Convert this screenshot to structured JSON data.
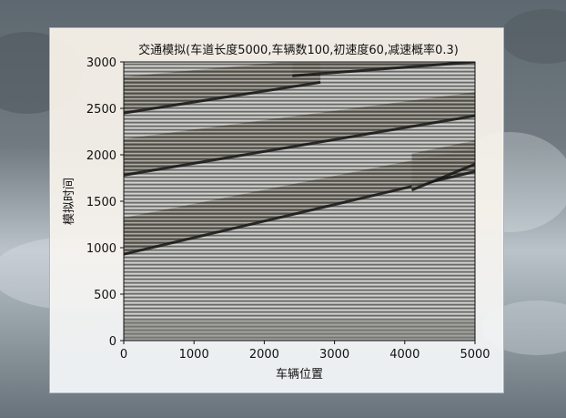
{
  "chart_data": {
    "type": "heatmap",
    "title": "交通模拟(车道长度5000,车辆数100,初速度60,减速概率0.3)",
    "xlabel": "车辆位置",
    "ylabel": "模拟时间",
    "xlim": [
      0,
      5000
    ],
    "ylim": [
      0,
      3000
    ],
    "xticks": [
      0,
      1000,
      2000,
      3000,
      4000,
      5000
    ],
    "yticks": [
      0,
      500,
      1000,
      1500,
      2000,
      2500,
      3000
    ],
    "grid": false,
    "legend": "none",
    "colormap": "gray",
    "colors": {
      "background_dark": "#2e2e2c",
      "stripe_light": "#c8c8c6",
      "jam_line": "#151515"
    },
    "jam_bands": [
      {
        "x_start": 0,
        "y_start": 930,
        "x_end": 5000,
        "y_end": 1820
      },
      {
        "x_start": 0,
        "y_start": 1780,
        "x_end": 5000,
        "y_end": 2420
      },
      {
        "x_start": 0,
        "y_start": 2450,
        "x_end": 2800,
        "y_end": 2780
      },
      {
        "x_start": 4100,
        "y_start": 1620,
        "x_end": 5000,
        "y_end": 1900
      },
      {
        "x_start": 2400,
        "y_start": 2850,
        "x_end": 5000,
        "y_end": 3000
      }
    ]
  }
}
